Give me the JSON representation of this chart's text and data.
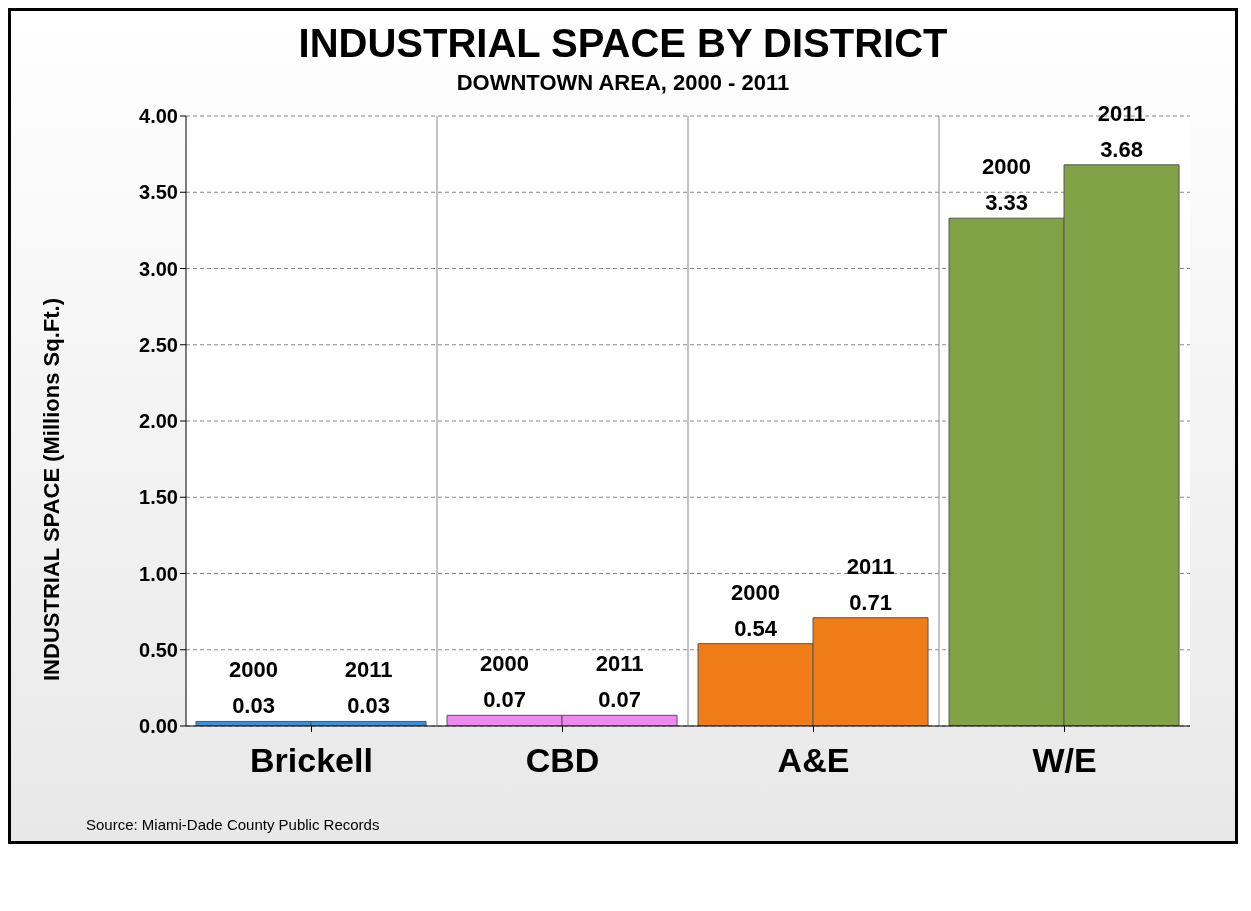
{
  "chart_data": {
    "type": "bar",
    "title": "INDUSTRIAL SPACE BY DISTRICT",
    "subtitle": "DOWNTOWN AREA, 2000 - 2011",
    "ylabel": "INDUSTRIAL SPACE (Millions Sq.Ft.)",
    "categories": [
      "Brickell",
      "CBD",
      "A&E",
      "W/E"
    ],
    "series": [
      {
        "name": "2000",
        "values": [
          0.03,
          0.07,
          0.54,
          3.33
        ],
        "colors": [
          "#3a8fd8",
          "#ef88ef",
          "#f07c18",
          "#80a145"
        ]
      },
      {
        "name": "2011",
        "values": [
          0.03,
          0.07,
          0.71,
          3.68
        ],
        "colors": [
          "#3a8fd8",
          "#ef88ef",
          "#f07c18",
          "#80a145"
        ]
      }
    ],
    "ylim": [
      0,
      4
    ],
    "yticks": [
      {
        "value": 0,
        "label": "0.00"
      },
      {
        "value": 0.5,
        "label": "0.50"
      },
      {
        "value": 1,
        "label": "1.00"
      },
      {
        "value": 1.5,
        "label": "1.50"
      },
      {
        "value": 2,
        "label": "2.00"
      },
      {
        "value": 2.5,
        "label": "2.50"
      },
      {
        "value": 3,
        "label": "3.00"
      },
      {
        "value": 3.5,
        "label": "3.50"
      },
      {
        "value": 4,
        "label": "4.00"
      }
    ],
    "grid": true,
    "data_labels": true,
    "annotations": [
      "Source: Miami-Dade County Public Records"
    ]
  }
}
